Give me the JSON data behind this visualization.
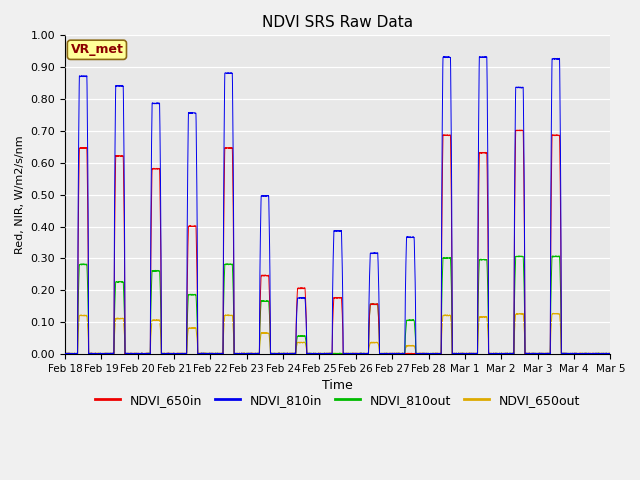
{
  "title": "NDVI SRS Raw Data",
  "xlabel": "Time",
  "ylabel": "Red, NIR, W/m2/s/nm",
  "ylim": [
    0.0,
    1.0
  ],
  "annotation_text": "VR_met",
  "annotation_color": "#8B0000",
  "annotation_bg": "#FFFF99",
  "annotation_border": "#8B6914",
  "plot_bg_color": "#E8E8E8",
  "fig_bg_color": "#F0F0F0",
  "series_colors": {
    "NDVI_650in": "#EE0000",
    "NDVI_810in": "#0000EE",
    "NDVI_810out": "#00BB00",
    "NDVI_650out": "#DDAA00"
  },
  "xtick_labels": [
    "Feb 18",
    "Feb 19",
    "Feb 20",
    "Feb 21",
    "Feb 22",
    "Feb 23",
    "Feb 24",
    "Feb 25",
    "Feb 26",
    "Feb 27",
    "Feb 28",
    "Mar 1",
    "Mar 2",
    "Mar 3",
    "Mar 4",
    "Mar 5"
  ],
  "daily_peaks_650in": [
    0.645,
    0.62,
    0.58,
    0.4,
    0.645,
    0.245,
    0.205,
    0.175,
    0.155,
    0.0,
    0.685,
    0.63,
    0.7,
    0.685,
    0.0
  ],
  "daily_peaks_810in": [
    0.87,
    0.84,
    0.785,
    0.755,
    0.88,
    0.495,
    0.175,
    0.385,
    0.315,
    0.365,
    0.93,
    0.93,
    0.835,
    0.925,
    0.0
  ],
  "daily_peaks_810out": [
    0.28,
    0.225,
    0.26,
    0.185,
    0.28,
    0.165,
    0.055,
    0.0,
    0.155,
    0.105,
    0.3,
    0.295,
    0.305,
    0.305,
    0.0
  ],
  "daily_peaks_650out": [
    0.12,
    0.11,
    0.105,
    0.08,
    0.12,
    0.065,
    0.035,
    0.0,
    0.035,
    0.025,
    0.12,
    0.115,
    0.125,
    0.125,
    0.0
  ],
  "n_days": 15,
  "figsize": [
    6.4,
    4.8
  ],
  "dpi": 100
}
